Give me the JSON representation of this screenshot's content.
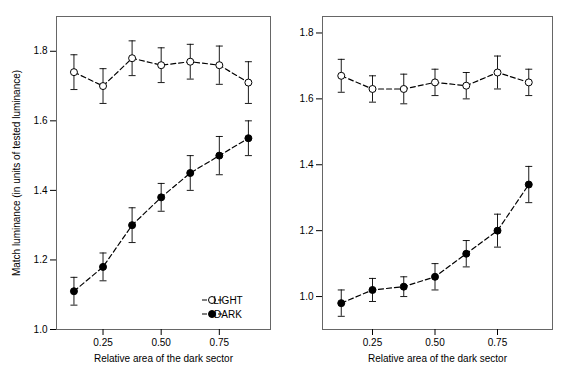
{
  "chart_data": [
    {
      "type": "line",
      "xlabel": "Relative area of the dark sector",
      "ylabel": "Match luminance (in units of tested luminance)",
      "x": [
        0.125,
        0.25,
        0.375,
        0.5,
        0.625,
        0.75,
        0.875
      ],
      "xlim": [
        0.05,
        0.97
      ],
      "xticks": [
        0.25,
        {
          "value": 0.5,
          "label": "0.50"
        },
        0.75
      ],
      "ylim": [
        1.0,
        1.9
      ],
      "yticks": [
        {
          "value": 1.0,
          "label": "1.0"
        },
        1.2,
        1.4,
        1.6,
        1.8
      ],
      "legend": "lower right",
      "line_style": "dashed",
      "series": [
        {
          "name": "LIGHT",
          "color": "#000000",
          "marker": "open",
          "values": [
            1.74,
            1.7,
            1.78,
            1.76,
            1.77,
            1.76,
            1.71
          ],
          "errors": [
            0.05,
            0.05,
            0.05,
            0.05,
            0.05,
            0.055,
            0.06
          ]
        },
        {
          "name": "DARK",
          "color": "#000000",
          "marker": "filled",
          "values": [
            1.11,
            1.18,
            1.3,
            1.38,
            1.45,
            1.5,
            1.55
          ],
          "errors": [
            0.04,
            0.04,
            0.05,
            0.04,
            0.05,
            0.055,
            0.05
          ]
        }
      ]
    },
    {
      "type": "line",
      "xlabel": "Relative area of the dark sector",
      "x": [
        0.125,
        0.25,
        0.375,
        0.5,
        0.625,
        0.75,
        0.875
      ],
      "xlim": [
        0.05,
        0.97
      ],
      "xticks": [
        0.25,
        {
          "value": 0.5,
          "label": "0.50"
        },
        0.75
      ],
      "ylim": [
        0.9,
        1.85
      ],
      "yticks": [
        {
          "value": 1.0,
          "label": "1.0"
        },
        1.2,
        1.4,
        1.6,
        1.8
      ],
      "line_style": "dashed",
      "series": [
        {
          "name": "LIGHT",
          "color": "#000000",
          "marker": "open",
          "values": [
            1.67,
            1.63,
            1.63,
            1.65,
            1.64,
            1.68,
            1.65
          ],
          "errors": [
            0.05,
            0.04,
            0.045,
            0.04,
            0.04,
            0.05,
            0.04
          ]
        },
        {
          "name": "DARK",
          "color": "#000000",
          "marker": "filled",
          "values": [
            0.98,
            1.02,
            1.03,
            1.06,
            1.13,
            1.2,
            1.34
          ],
          "errors": [
            0.04,
            0.035,
            0.03,
            0.04,
            0.04,
            0.05,
            0.055
          ]
        }
      ]
    }
  ]
}
